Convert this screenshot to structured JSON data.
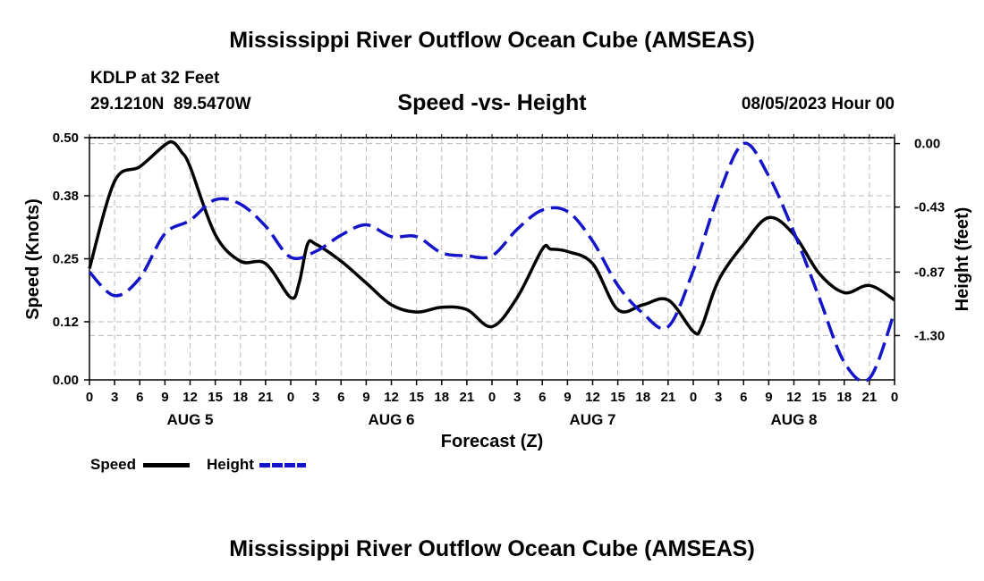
{
  "header": {
    "title": "Mississippi River Outflow Ocean Cube (AMSEAS)",
    "station": "KDLP at 32 Feet",
    "latlon": "29.1210N  89.5470W",
    "subtitle": "Speed -vs- Height",
    "date": "08/05/2023 Hour 00"
  },
  "footer": {
    "title": "Mississippi River Outflow Ocean Cube (AMSEAS)"
  },
  "legend": {
    "speed_label": "Speed",
    "height_label": "Height"
  },
  "colors": {
    "speed": "#000000",
    "height": "#1414c8",
    "grid": "#bbbbbb"
  },
  "chart_data": {
    "type": "line",
    "title": "Speed -vs- Height",
    "xlabel": "Forecast (Z)",
    "ylabel": "Speed (Knots)",
    "y2label": "Height (feet)",
    "x_hours_range": [
      0,
      96
    ],
    "ylim": [
      0,
      0.5
    ],
    "y2lim": [
      -1.6,
      0.04
    ],
    "yticks": [
      "0.00",
      "0.12",
      "0.25",
      "0.38",
      "0.50"
    ],
    "y2ticks": [
      {
        "value": 0.0,
        "label": "0.00"
      },
      {
        "value": -0.43,
        "label": "-0.43"
      },
      {
        "value": -0.87,
        "label": "-0.87"
      },
      {
        "value": -1.3,
        "label": "-1.30"
      }
    ],
    "xtick_labels": [
      "0",
      "3",
      "6",
      "9",
      "12",
      "15",
      "18",
      "21",
      "0",
      "3",
      "6",
      "9",
      "12",
      "15",
      "18",
      "21",
      "0",
      "3",
      "6",
      "9",
      "12",
      "15",
      "18",
      "21",
      "0",
      "3",
      "6",
      "9",
      "12",
      "15",
      "18",
      "21",
      "0"
    ],
    "day_labels": [
      {
        "hour": 12,
        "label": "AUG 5"
      },
      {
        "hour": 36,
        "label": "AUG 6"
      },
      {
        "hour": 60,
        "label": "AUG 7"
      },
      {
        "hour": 84,
        "label": "AUG 8"
      }
    ],
    "series": [
      {
        "name": "Speed",
        "axis": "left",
        "hours": [
          0,
          3,
          6,
          9,
          10,
          11,
          12,
          15,
          18,
          21,
          24,
          25,
          26,
          27,
          30,
          33,
          36,
          39,
          42,
          45,
          48,
          51,
          54,
          55,
          57,
          60,
          63,
          66,
          69,
          72,
          73,
          75,
          78,
          81,
          84,
          87,
          90,
          93,
          96
        ],
        "values": [
          0.23,
          0.41,
          0.44,
          0.485,
          0.49,
          0.47,
          0.44,
          0.3,
          0.245,
          0.24,
          0.17,
          0.2,
          0.28,
          0.28,
          0.245,
          0.2,
          0.155,
          0.14,
          0.15,
          0.145,
          0.11,
          0.17,
          0.27,
          0.27,
          0.265,
          0.24,
          0.145,
          0.155,
          0.165,
          0.1,
          0.11,
          0.205,
          0.28,
          0.335,
          0.3,
          0.22,
          0.18,
          0.195,
          0.165
        ]
      },
      {
        "name": "Height",
        "axis": "right",
        "hours": [
          0,
          3,
          6,
          9,
          12,
          15,
          18,
          21,
          24,
          27,
          30,
          33,
          36,
          39,
          42,
          45,
          48,
          51,
          54,
          57,
          60,
          63,
          66,
          69,
          72,
          75,
          78,
          81,
          84,
          87,
          90,
          93,
          96
        ],
        "values": [
          -0.87,
          -1.03,
          -0.91,
          -0.61,
          -0.52,
          -0.38,
          -0.41,
          -0.56,
          -0.77,
          -0.73,
          -0.62,
          -0.55,
          -0.63,
          -0.63,
          -0.74,
          -0.76,
          -0.76,
          -0.58,
          -0.45,
          -0.46,
          -0.66,
          -0.96,
          -1.15,
          -1.24,
          -0.86,
          -0.35,
          0.0,
          -0.22,
          -0.6,
          -1.04,
          -1.48,
          -1.59,
          -1.14
        ]
      }
    ]
  }
}
